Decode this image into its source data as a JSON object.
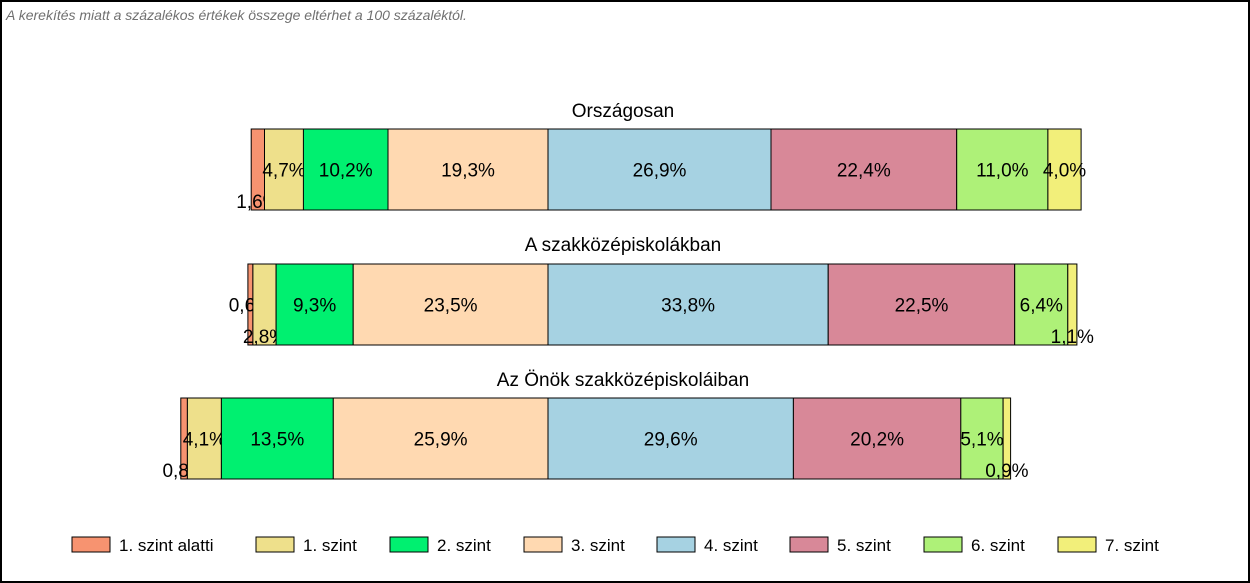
{
  "note": "A kerekítés miatt a  százalékos értékek összege eltérhet a 100 százaléktól.",
  "chart_data": {
    "type": "bar",
    "orientation": "horizontal",
    "stacked": true,
    "centered_on": "3. szint / 4. szint boundary",
    "categories": [
      "1. szint alatti",
      "1. szint",
      "2. szint",
      "3. szint",
      "4. szint",
      "5. szint",
      "6. szint",
      "7. szint"
    ],
    "colors": [
      "#F79370",
      "#EEE08B",
      "#00F070",
      "#FFD9B1",
      "#A6D2E2",
      "#D88898",
      "#AEF178",
      "#F2EF7A"
    ],
    "panels": [
      {
        "title": "Országosan",
        "values": [
          1.6,
          4.7,
          10.2,
          19.3,
          26.9,
          22.4,
          11.0,
          4.0
        ],
        "labels": [
          "1,6%",
          "4,7%",
          "10,2%",
          "19,3%",
          "26,9%",
          "22,4%",
          "11,0%",
          "4,0%"
        ]
      },
      {
        "title": "A szakközépiskolákban",
        "values": [
          0.6,
          2.8,
          9.3,
          23.5,
          33.8,
          22.5,
          6.4,
          1.1
        ],
        "labels": [
          "0,6%",
          "2,8%",
          "9,3%",
          "23,5%",
          "33,8%",
          "22,5%",
          "6,4%",
          "1,1%"
        ]
      },
      {
        "title": "Az Önök szakközépiskoláiban",
        "values": [
          0.8,
          4.1,
          13.5,
          25.9,
          29.6,
          20.2,
          5.1,
          0.9
        ],
        "labels": [
          "0,8%",
          "4,1%",
          "13,5%",
          "25,9%",
          "29,6%",
          "20,2%",
          "5,1%",
          "0,9%"
        ]
      }
    ],
    "legend": {
      "position": "bottom",
      "entries": [
        "1. szint alatti",
        "1. szint",
        "2. szint",
        "3. szint",
        "4. szint",
        "5. szint",
        "6. szint",
        "7. szint"
      ]
    }
  }
}
